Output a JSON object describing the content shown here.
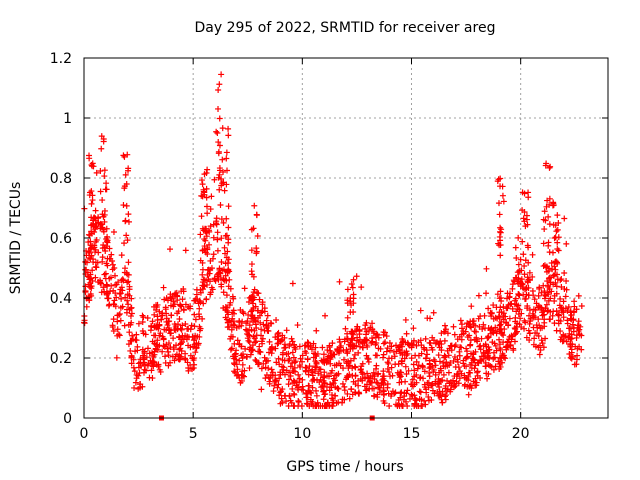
{
  "chart_data": {
    "type": "scatter",
    "title": "Day 295 of 2022, SRMTID for receiver areg",
    "xlabel": "GPS time / hours",
    "ylabel": "SRMTID / TECUs",
    "xlim": [
      0,
      24
    ],
    "ylim": [
      0,
      1.2
    ],
    "x_ticks": [
      0,
      5,
      10,
      15,
      20
    ],
    "x_tick_labels": [
      "0",
      "5",
      "10",
      "15",
      "20"
    ],
    "y_ticks": [
      0,
      0.2,
      0.4,
      0.6,
      0.8,
      1.0,
      1.2
    ],
    "y_tick_labels": [
      "0",
      "0.2",
      "0.4",
      "0.6",
      "0.8",
      "1",
      "1.2"
    ],
    "grid": true,
    "marker": "+",
    "color": "#ff0000",
    "gap_markers_x": [
      3.55,
      13.2
    ],
    "series": [
      {
        "name": "areg",
        "seed": 295,
        "points_per_hour": 90,
        "x_range": [
          0,
          22.8
        ],
        "profile": [
          [
            0.0,
            0.42
          ],
          [
            0.5,
            0.58
          ],
          [
            1.0,
            0.5
          ],
          [
            1.5,
            0.36
          ],
          [
            2.0,
            0.4
          ],
          [
            2.3,
            0.2
          ],
          [
            3.0,
            0.24
          ],
          [
            4.0,
            0.3
          ],
          [
            4.6,
            0.32
          ],
          [
            5.0,
            0.22
          ],
          [
            5.5,
            0.5
          ],
          [
            6.0,
            0.55
          ],
          [
            6.5,
            0.45
          ],
          [
            7.0,
            0.2
          ],
          [
            7.5,
            0.28
          ],
          [
            8.0,
            0.3
          ],
          [
            8.5,
            0.22
          ],
          [
            9.0,
            0.16
          ],
          [
            10.0,
            0.14
          ],
          [
            11.0,
            0.12
          ],
          [
            12.0,
            0.18
          ],
          [
            13.0,
            0.2
          ],
          [
            14.0,
            0.16
          ],
          [
            15.0,
            0.14
          ],
          [
            16.0,
            0.15
          ],
          [
            17.0,
            0.2
          ],
          [
            18.0,
            0.22
          ],
          [
            19.0,
            0.28
          ],
          [
            19.5,
            0.3
          ],
          [
            20.0,
            0.42
          ],
          [
            20.5,
            0.36
          ],
          [
            21.0,
            0.32
          ],
          [
            21.3,
            0.45
          ],
          [
            21.8,
            0.38
          ],
          [
            22.5,
            0.28
          ],
          [
            22.8,
            0.28
          ]
        ],
        "spikes": [
          {
            "x": 0.35,
            "ymax": 0.88
          },
          {
            "x": 0.9,
            "ymax": 0.94
          },
          {
            "x": 1.95,
            "ymax": 0.93
          },
          {
            "x": 5.5,
            "ymax": 0.84
          },
          {
            "x": 6.2,
            "ymax": 1.15
          },
          {
            "x": 6.5,
            "ymax": 0.97
          },
          {
            "x": 7.8,
            "ymax": 0.73
          },
          {
            "x": 12.2,
            "ymax": 0.45
          },
          {
            "x": 19.1,
            "ymax": 0.8
          },
          {
            "x": 20.2,
            "ymax": 0.77
          },
          {
            "x": 21.2,
            "ymax": 0.85
          },
          {
            "x": 21.6,
            "ymax": 0.72
          }
        ]
      }
    ]
  }
}
